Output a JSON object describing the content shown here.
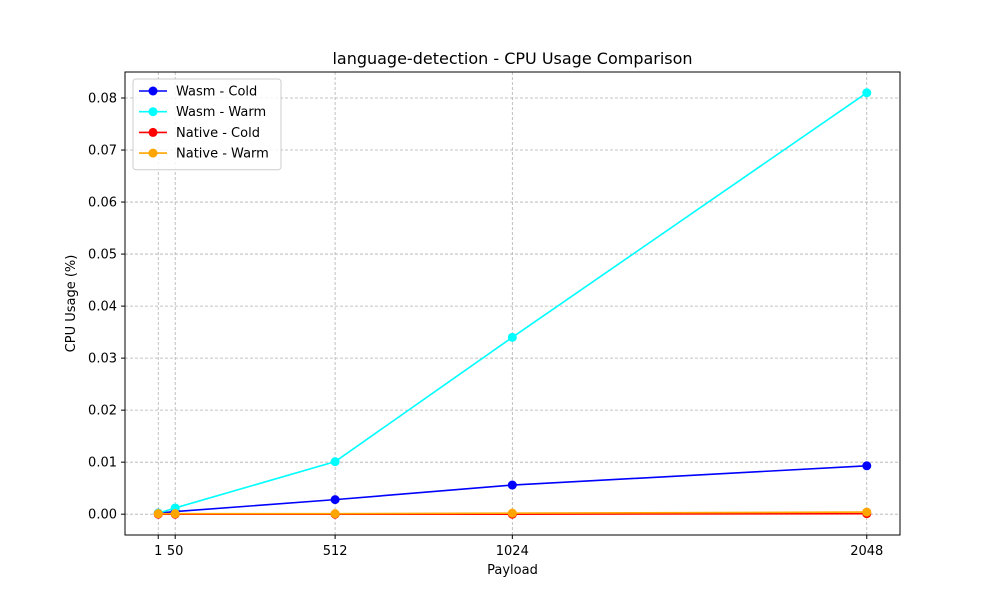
{
  "chart_data": {
    "type": "line",
    "title": "language-detection - CPU Usage Comparison",
    "xlabel": "Payload",
    "ylabel": "CPU Usage (%)",
    "x": [
      1,
      50,
      512,
      1024,
      2048
    ],
    "x_ticks": [
      "1",
      "50",
      "512",
      "1024",
      "2048"
    ],
    "xlim": [
      -95,
      2144
    ],
    "ylim": [
      -0.004,
      0.085
    ],
    "y_ticks": [
      "0.00",
      "0.01",
      "0.02",
      "0.03",
      "0.04",
      "0.05",
      "0.06",
      "0.07",
      "0.08"
    ],
    "y_tick_values": [
      0,
      0.01,
      0.02,
      0.03,
      0.04,
      0.05,
      0.06,
      0.07,
      0.08
    ],
    "grid": true,
    "legend_position": "top-left",
    "series": [
      {
        "name": "Wasm - Cold",
        "color": "#0000ff",
        "values": [
          0.0002,
          0.0005,
          0.0028,
          0.0056,
          0.0093
        ]
      },
      {
        "name": "Wasm - Warm",
        "color": "#00ffff",
        "values": [
          0.0002,
          0.0012,
          0.0101,
          0.034,
          0.081
        ]
      },
      {
        "name": "Native - Cold",
        "color": "#ff0000",
        "values": [
          0.0,
          0.0,
          0.0,
          0.0,
          0.0001
        ]
      },
      {
        "name": "Native - Warm",
        "color": "#ffa500",
        "values": [
          0.0001,
          0.0001,
          0.0001,
          0.0002,
          0.0004
        ]
      }
    ]
  }
}
